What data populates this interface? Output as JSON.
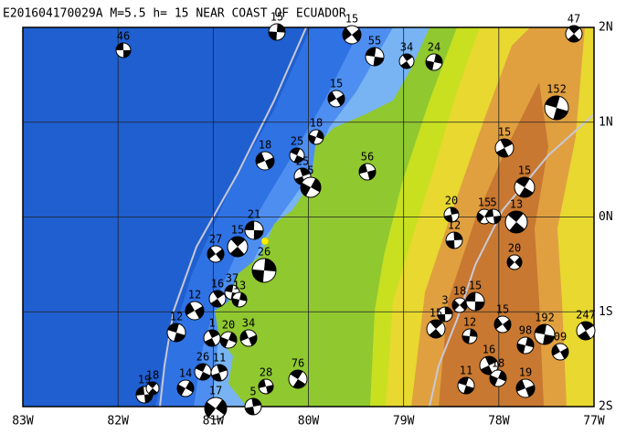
{
  "title": "E201604170029A M=5.5 h= 15 NEAR COAST OF ECUADOR",
  "x_labels": [
    "83W",
    "82W",
    "81W",
    "80W",
    "79W",
    "78W",
    "77W"
  ],
  "y_labels": [
    "2N",
    "1N",
    "0N",
    "1S",
    "2S"
  ],
  "event_labels": [
    "46",
    "47",
    "15",
    "15",
    "55",
    "34",
    "24",
    "15",
    "152",
    "15",
    "18",
    "18",
    "25",
    "25",
    "5",
    "56",
    "15",
    "20",
    "15",
    "5",
    "13",
    "12",
    "20",
    "21",
    "15",
    "26",
    "27",
    "37",
    "16",
    "13",
    "12",
    "12",
    "1",
    "20",
    "34",
    "26",
    "11",
    "14",
    "28",
    "76",
    "5",
    "17",
    "19",
    "18",
    "3",
    "18",
    "15",
    "15",
    "12",
    "15",
    "192",
    "247",
    "98",
    "09",
    "11",
    "16",
    "18",
    "19"
  ]
}
